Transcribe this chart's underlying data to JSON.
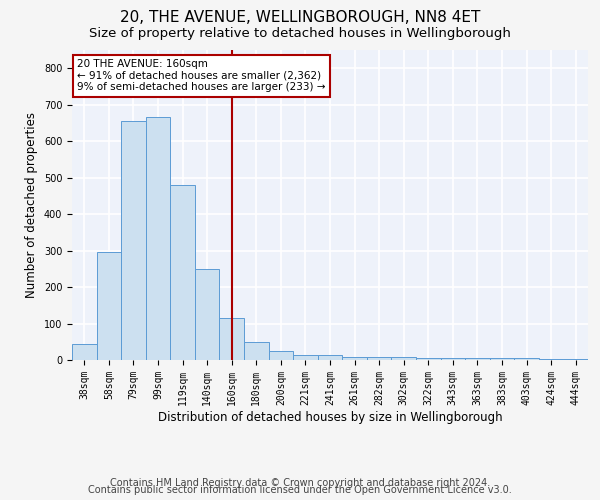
{
  "title": "20, THE AVENUE, WELLINGBOROUGH, NN8 4ET",
  "subtitle": "Size of property relative to detached houses in Wellingborough",
  "xlabel": "Distribution of detached houses by size in Wellingborough",
  "ylabel": "Number of detached properties",
  "categories": [
    "38sqm",
    "58sqm",
    "79sqm",
    "99sqm",
    "119sqm",
    "140sqm",
    "160sqm",
    "180sqm",
    "200sqm",
    "221sqm",
    "241sqm",
    "261sqm",
    "282sqm",
    "302sqm",
    "322sqm",
    "343sqm",
    "363sqm",
    "383sqm",
    "403sqm",
    "424sqm",
    "444sqm"
  ],
  "values": [
    45,
    295,
    655,
    665,
    480,
    250,
    115,
    50,
    25,
    15,
    15,
    8,
    8,
    8,
    5,
    5,
    5,
    5,
    5,
    3,
    3
  ],
  "bar_color": "#cce0f0",
  "bar_edge_color": "#5b9bd5",
  "vline_color": "#aa0000",
  "vline_x_index": 6,
  "annotation_line1": "20 THE AVENUE: 160sqm",
  "annotation_line2": "← 91% of detached houses are smaller (2,362)",
  "annotation_line3": "9% of semi-detached houses are larger (233) →",
  "annotation_box_color": "#ffffff",
  "annotation_box_edge": "#aa0000",
  "ylim": [
    0,
    850
  ],
  "yticks": [
    0,
    100,
    200,
    300,
    400,
    500,
    600,
    700,
    800
  ],
  "footer_line1": "Contains HM Land Registry data © Crown copyright and database right 2024.",
  "footer_line2": "Contains public sector information licensed under the Open Government Licence v3.0.",
  "bg_color": "#eef2fa",
  "fig_bg_color": "#f5f5f5",
  "grid_color": "#ffffff",
  "title_fontsize": 11,
  "subtitle_fontsize": 9.5,
  "axis_label_fontsize": 8.5,
  "tick_fontsize": 7,
  "annot_fontsize": 7.5,
  "footer_fontsize": 7
}
